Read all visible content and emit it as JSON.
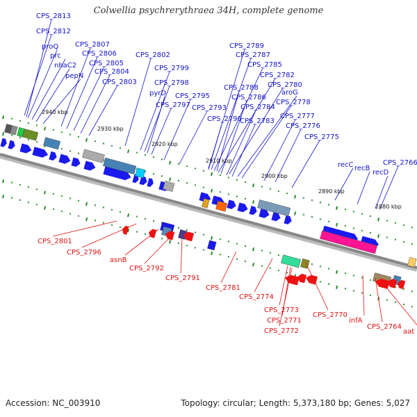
{
  "title": "Colwellia psychrerythraea 34H, complete genome",
  "footer": {
    "accession": "Accession: NC_003910",
    "summary": "Topology: circular; Length: 5,373,180 bp; Genes: 5,027"
  },
  "colors": {
    "forward_label": "#1010cc",
    "reverse_label": "#dd1111",
    "forward_gene": "#1a1aee",
    "reverse_gene": "#ee1111",
    "backbone": "#888888",
    "tick": "#2a8a2a"
  },
  "ticks": [
    {
      "label": "2940 kbp"
    },
    {
      "label": "2930 kbp"
    },
    {
      "label": "2920 kbp"
    },
    {
      "label": "2910 kbp"
    },
    {
      "label": "2900 kbp"
    },
    {
      "label": "2890 kbp"
    },
    {
      "label": "2880 kbp"
    }
  ],
  "forward_labels": [
    {
      "text": "CPS_2813"
    },
    {
      "text": "CPS_2812"
    },
    {
      "text": "proQ"
    },
    {
      "text": "prc"
    },
    {
      "text": "nhaC2"
    },
    {
      "text": "pepN"
    },
    {
      "text": "CPS_2807"
    },
    {
      "text": "CPS_2806"
    },
    {
      "text": "CPS_2805"
    },
    {
      "text": "CPS_2804"
    },
    {
      "text": "CPS_2803"
    },
    {
      "text": "CPS_2802"
    },
    {
      "text": "CPS_2799"
    },
    {
      "text": "CPS_2798"
    },
    {
      "text": "pyrD"
    },
    {
      "text": "CPS_2797"
    },
    {
      "text": "CPS_2795"
    },
    {
      "text": "CPS_2793"
    },
    {
      "text": "CPS_2789"
    },
    {
      "text": "CPS_2787"
    },
    {
      "text": "CPS_2785"
    },
    {
      "text": "CPS_2782"
    },
    {
      "text": "CPS_2788"
    },
    {
      "text": "CPS_2780"
    },
    {
      "text": "CPS_2786"
    },
    {
      "text": "aroG"
    },
    {
      "text": "CPS_2784"
    },
    {
      "text": "CPS_2778"
    },
    {
      "text": "CPS_2790"
    },
    {
      "text": "CPS_2783"
    },
    {
      "text": "CPS_2777"
    },
    {
      "text": "CPS_2776"
    },
    {
      "text": "CPS_2775"
    },
    {
      "text": "recC"
    },
    {
      "text": "recB"
    },
    {
      "text": "recD"
    },
    {
      "text": "CPS_2766"
    }
  ],
  "reverse_labels": [
    {
      "text": "CPS_2801"
    },
    {
      "text": "CPS_2796"
    },
    {
      "text": "asnB"
    },
    {
      "text": "CPS_2792"
    },
    {
      "text": "CPS_2791"
    },
    {
      "text": "CPS_2781"
    },
    {
      "text": "CPS_2774"
    },
    {
      "text": "CPS_2773"
    },
    {
      "text": "CPS_2771"
    },
    {
      "text": "CPS_2772"
    },
    {
      "text": "CPS_2770"
    },
    {
      "text": "infA"
    },
    {
      "text": "CPS_2764"
    },
    {
      "text": "aat"
    }
  ]
}
